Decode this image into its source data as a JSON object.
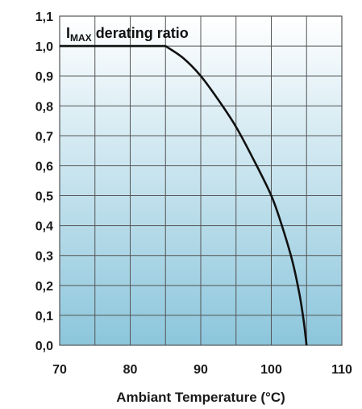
{
  "chart_data": {
    "type": "line",
    "title": {
      "main": "I",
      "subscript": "MAX",
      "rest": " derating ratio"
    },
    "xlabel": "Ambiant Temperature (°C)",
    "ylabel": "",
    "xlim": [
      70,
      110
    ],
    "ylim": [
      0,
      1.1
    ],
    "x_ticks": [
      70,
      80,
      90,
      100,
      110
    ],
    "x_tick_labels": [
      "70",
      "80",
      "90",
      "100",
      "110"
    ],
    "y_ticks": [
      0,
      0.1,
      0.2,
      0.3,
      0.4,
      0.5,
      0.6,
      0.7,
      0.8,
      0.9,
      1.0,
      1.1
    ],
    "y_tick_labels": [
      "0,0",
      "0,1",
      "0,2",
      "0,3",
      "0,4",
      "0,5",
      "0,6",
      "0,7",
      "0,8",
      "0,9",
      "1,0",
      "1,1"
    ],
    "x_minor_grid": [
      75,
      85,
      95,
      105
    ],
    "grid": true,
    "series": [
      {
        "x": [
          70,
          85,
          87.5,
          90,
          92.5,
          95,
          97.5,
          100,
          101.5,
          103,
          104,
          104.6,
          105
        ],
        "y": [
          1.0,
          1.0,
          0.96,
          0.9,
          0.82,
          0.73,
          0.62,
          0.5,
          0.4,
          0.28,
          0.17,
          0.08,
          0.0
        ]
      }
    ],
    "colors": {
      "line": "#111111",
      "grid": "#555555",
      "background_top": "#ffffff",
      "background_bottom": "#8cc6dc"
    }
  }
}
